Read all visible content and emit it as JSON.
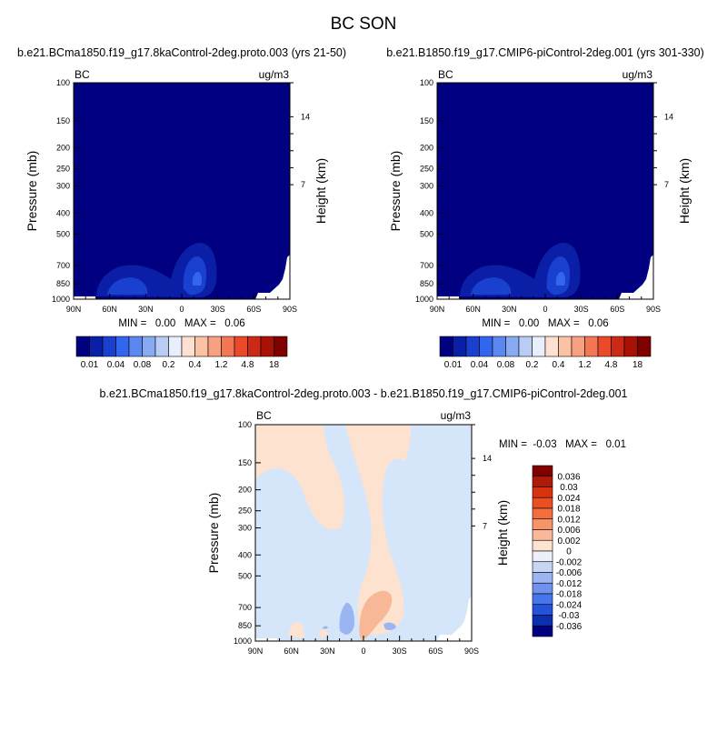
{
  "figure": {
    "title": "BC SON"
  },
  "chart_data": [
    {
      "type": "heatmap",
      "title": "b.e21.BCma1850.f19_g17.8kaControl-2deg.proto.003 (yrs 21-50)",
      "left_label": "BC",
      "right_label": "ug/m3",
      "ylabel": "Pressure (mb)",
      "ylabel_right": "Height (km)",
      "x_ticks": [
        "90N",
        "60N",
        "30N",
        "0",
        "30S",
        "60S",
        "90S"
      ],
      "y_ticks": [
        100,
        150,
        200,
        250,
        300,
        400,
        500,
        700,
        850,
        1000
      ],
      "y_right_ticks": [
        14,
        7
      ],
      "ylim": [
        1000,
        100
      ],
      "y_scale": "log",
      "min_max_text": "MIN =   0.00   MAX =   0.06",
      "min": 0.0,
      "max": 0.06,
      "colorbar_labels": [
        "0.01",
        "0.04",
        "0.08",
        "0.2",
        "0.4",
        "1.2",
        "4.8",
        "18"
      ]
    },
    {
      "type": "heatmap",
      "title": "b.e21.B1850.f19_g17.CMIP6-piControl-2deg.001 (yrs 301-330)",
      "left_label": "BC",
      "right_label": "ug/m3",
      "ylabel": "Pressure (mb)",
      "ylabel_right": "Height (km)",
      "x_ticks": [
        "90N",
        "60N",
        "30N",
        "0",
        "30S",
        "60S",
        "90S"
      ],
      "y_ticks": [
        100,
        150,
        200,
        250,
        300,
        400,
        500,
        700,
        850,
        1000
      ],
      "y_right_ticks": [
        14,
        7
      ],
      "ylim": [
        1000,
        100
      ],
      "y_scale": "log",
      "min_max_text": "MIN =   0.00   MAX =   0.06",
      "min": 0.0,
      "max": 0.06,
      "colorbar_labels": [
        "0.01",
        "0.04",
        "0.08",
        "0.2",
        "0.4",
        "1.2",
        "4.8",
        "18"
      ]
    },
    {
      "type": "heatmap",
      "title": "b.e21.BCma1850.f19_g17.8kaControl-2deg.proto.003 - b.e21.B1850.f19_g17.CMIP6-piControl-2deg.001",
      "left_label": "BC",
      "right_label": "ug/m3",
      "ylabel": "Pressure (mb)",
      "ylabel_right": "Height (km)",
      "x_ticks": [
        "90N",
        "60N",
        "30N",
        "0",
        "30S",
        "60S",
        "90S"
      ],
      "y_ticks": [
        100,
        150,
        200,
        250,
        300,
        400,
        500,
        700,
        850,
        1000
      ],
      "y_right_ticks": [
        14,
        7
      ],
      "ylim": [
        1000,
        100
      ],
      "y_scale": "log",
      "min_max_text": "MIN =  -0.03   MAX =   0.01",
      "min": -0.03,
      "max": 0.01,
      "colorbar_labels": [
        "0.036",
        "0.03",
        "0.024",
        "0.018",
        "0.012",
        "0.006",
        "0.002",
        "0",
        "-0.002",
        "-0.006",
        "-0.012",
        "-0.018",
        "-0.024",
        "-0.03",
        "-0.036"
      ]
    }
  ],
  "colors": {
    "abs_scale": [
      "#000080",
      "#0a1fa6",
      "#1a40d0",
      "#3366ee",
      "#5a88f0",
      "#88aaf2",
      "#b8ccf6",
      "#e8eefc",
      "#fde0cf",
      "#fbc2a4",
      "#f8a080",
      "#f37755",
      "#e84a2a",
      "#cc2a14",
      "#a81206",
      "#800000"
    ],
    "diff_scale": [
      "#800000",
      "#b01a08",
      "#d8320e",
      "#ea4f24",
      "#f36e3e",
      "#f8946a",
      "#fbb898",
      "#fde3cf",
      "#edf0fb",
      "#c7d6f5",
      "#9bb5f2",
      "#6f92ef",
      "#4775ec",
      "#2452db",
      "#0c2fb0",
      "#000080"
    ],
    "background_field": "#000080",
    "diff_field": "#d6e6fa",
    "diff_positive": "#fde3cf",
    "diff_negative": "#9bb5f2"
  }
}
